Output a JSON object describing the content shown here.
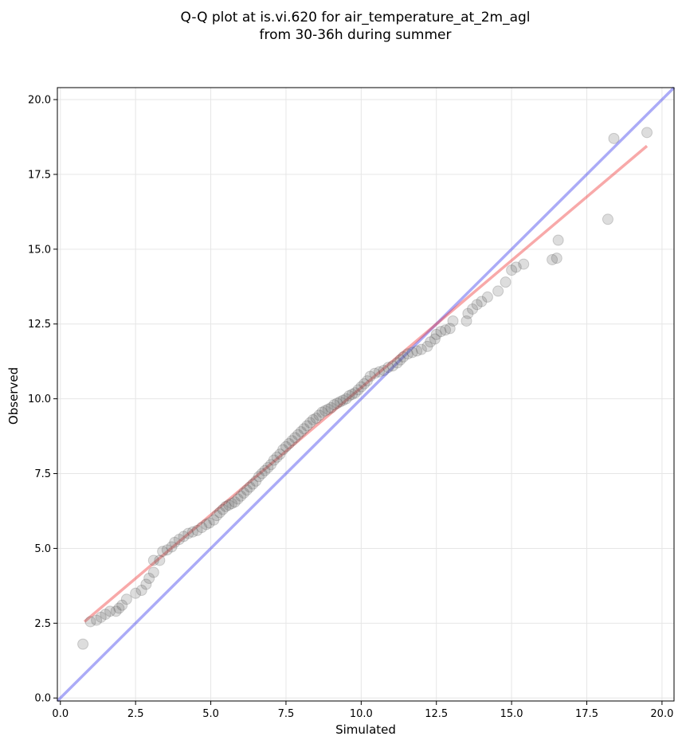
{
  "chart_data": {
    "type": "scatter",
    "title_line1": "Q-Q plot at is.vi.620 for air_temperature_at_2m_agl",
    "title_line2": "from 30-36h during summer",
    "xlabel": "Simulated",
    "ylabel": "Observed",
    "xlim": [
      -0.1,
      20.4
    ],
    "ylim": [
      -0.1,
      20.4
    ],
    "x_ticks": [
      "0.0",
      "2.5",
      "5.0",
      "7.5",
      "10.0",
      "12.5",
      "15.0",
      "17.5",
      "20.0"
    ],
    "y_ticks": [
      "0.0",
      "2.5",
      "5.0",
      "7.5",
      "10.0",
      "12.5",
      "15.0",
      "17.5",
      "20.0"
    ],
    "grid": true,
    "identity_line": {
      "from": [
        -0.1,
        -0.1
      ],
      "to": [
        20.4,
        20.4
      ],
      "color": "#4444ee"
    },
    "fit_line": {
      "from": [
        0.8,
        2.55
      ],
      "to": [
        19.5,
        18.45
      ],
      "color": "#ee3333"
    },
    "point_color": "#555555",
    "points": [
      [
        0.75,
        1.8
      ],
      [
        1.0,
        2.55
      ],
      [
        1.2,
        2.6
      ],
      [
        1.35,
        2.7
      ],
      [
        1.5,
        2.8
      ],
      [
        1.65,
        2.9
      ],
      [
        1.85,
        2.9
      ],
      [
        1.95,
        3.0
      ],
      [
        2.05,
        3.1
      ],
      [
        2.2,
        3.3
      ],
      [
        2.5,
        3.5
      ],
      [
        2.7,
        3.6
      ],
      [
        2.85,
        3.8
      ],
      [
        2.95,
        4.0
      ],
      [
        3.1,
        4.2
      ],
      [
        3.3,
        4.6
      ],
      [
        3.1,
        4.6
      ],
      [
        3.4,
        4.9
      ],
      [
        3.55,
        4.95
      ],
      [
        3.7,
        5.05
      ],
      [
        3.8,
        5.2
      ],
      [
        3.95,
        5.3
      ],
      [
        4.1,
        5.4
      ],
      [
        4.25,
        5.5
      ],
      [
        4.4,
        5.55
      ],
      [
        4.55,
        5.6
      ],
      [
        4.7,
        5.7
      ],
      [
        4.85,
        5.8
      ],
      [
        4.95,
        5.85
      ],
      [
        5.1,
        5.95
      ],
      [
        5.2,
        6.1
      ],
      [
        5.3,
        6.2
      ],
      [
        5.4,
        6.3
      ],
      [
        5.5,
        6.4
      ],
      [
        5.6,
        6.45
      ],
      [
        5.7,
        6.5
      ],
      [
        5.8,
        6.55
      ],
      [
        5.9,
        6.65
      ],
      [
        6.0,
        6.75
      ],
      [
        6.1,
        6.85
      ],
      [
        6.2,
        6.95
      ],
      [
        6.3,
        7.05
      ],
      [
        6.4,
        7.15
      ],
      [
        6.5,
        7.25
      ],
      [
        6.6,
        7.4
      ],
      [
        6.7,
        7.5
      ],
      [
        6.8,
        7.6
      ],
      [
        6.9,
        7.7
      ],
      [
        7.0,
        7.8
      ],
      [
        7.1,
        7.95
      ],
      [
        7.2,
        8.05
      ],
      [
        7.3,
        8.15
      ],
      [
        7.4,
        8.3
      ],
      [
        7.5,
        8.4
      ],
      [
        7.6,
        8.5
      ],
      [
        7.7,
        8.6
      ],
      [
        7.8,
        8.7
      ],
      [
        7.9,
        8.8
      ],
      [
        8.0,
        8.9
      ],
      [
        8.1,
        9.0
      ],
      [
        8.2,
        9.1
      ],
      [
        8.3,
        9.2
      ],
      [
        8.4,
        9.3
      ],
      [
        8.5,
        9.35
      ],
      [
        8.6,
        9.45
      ],
      [
        8.7,
        9.55
      ],
      [
        8.8,
        9.6
      ],
      [
        8.9,
        9.65
      ],
      [
        9.0,
        9.7
      ],
      [
        9.1,
        9.8
      ],
      [
        9.2,
        9.85
      ],
      [
        9.3,
        9.9
      ],
      [
        9.4,
        9.95
      ],
      [
        9.5,
        10.0
      ],
      [
        9.6,
        10.1
      ],
      [
        9.7,
        10.15
      ],
      [
        9.8,
        10.2
      ],
      [
        9.9,
        10.3
      ],
      [
        10.0,
        10.4
      ],
      [
        10.1,
        10.5
      ],
      [
        10.2,
        10.6
      ],
      [
        10.3,
        10.75
      ],
      [
        10.45,
        10.85
      ],
      [
        10.6,
        10.9
      ],
      [
        10.75,
        10.95
      ],
      [
        10.9,
        11.05
      ],
      [
        11.05,
        11.1
      ],
      [
        11.2,
        11.2
      ],
      [
        11.3,
        11.3
      ],
      [
        11.4,
        11.4
      ],
      [
        11.55,
        11.5
      ],
      [
        11.7,
        11.55
      ],
      [
        11.85,
        11.6
      ],
      [
        12.0,
        11.65
      ],
      [
        12.2,
        11.75
      ],
      [
        12.3,
        11.9
      ],
      [
        12.45,
        12.0
      ],
      [
        12.5,
        12.15
      ],
      [
        12.65,
        12.25
      ],
      [
        12.8,
        12.3
      ],
      [
        12.95,
        12.35
      ],
      [
        13.05,
        12.6
      ],
      [
        13.5,
        12.6
      ],
      [
        13.55,
        12.85
      ],
      [
        13.7,
        13.0
      ],
      [
        13.85,
        13.15
      ],
      [
        14.0,
        13.25
      ],
      [
        14.2,
        13.4
      ],
      [
        14.55,
        13.6
      ],
      [
        14.8,
        13.9
      ],
      [
        15.0,
        14.3
      ],
      [
        15.15,
        14.4
      ],
      [
        15.4,
        14.5
      ],
      [
        16.35,
        14.65
      ],
      [
        16.5,
        14.7
      ],
      [
        16.55,
        15.3
      ],
      [
        18.2,
        16.0
      ],
      [
        18.4,
        18.7
      ],
      [
        19.5,
        18.9
      ]
    ]
  }
}
